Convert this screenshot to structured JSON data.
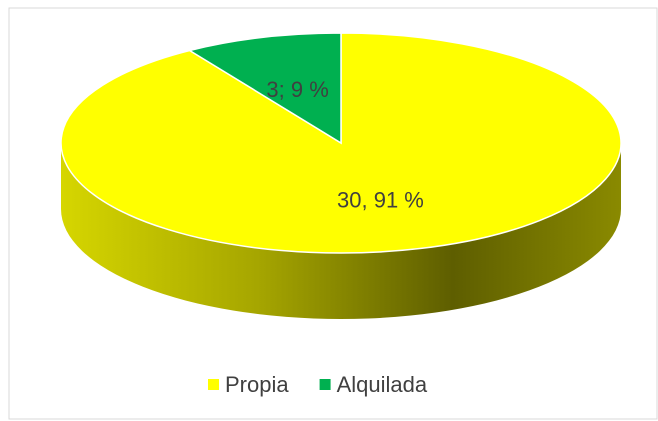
{
  "chart_data": {
    "type": "pie",
    "categories": [
      "Propia",
      "Alquilada"
    ],
    "values": [
      30,
      3
    ],
    "value_labels": [
      "30, 91 %",
      "3; 9 %"
    ],
    "colors": [
      "#ffff00",
      "#00b050"
    ],
    "legend": "bottom"
  }
}
